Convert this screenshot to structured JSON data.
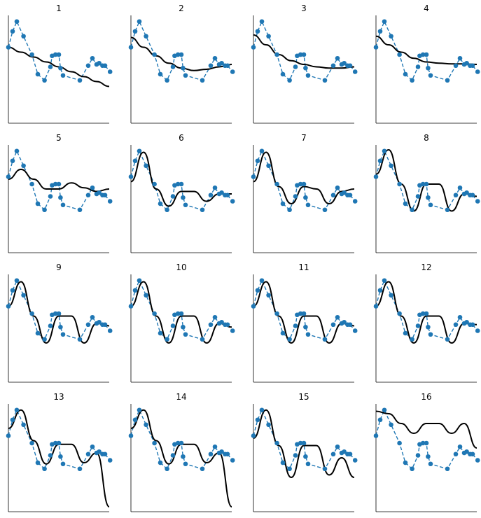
{
  "colors": {
    "truth": "#1f77b4",
    "points": "#1f77b4",
    "fit": "#000000",
    "axis": "#000000"
  },
  "chart_data": {
    "type": "line",
    "layout": {
      "rows": 4,
      "cols": 4
    },
    "true_function": {
      "label": "",
      "style": "dashed"
    },
    "samples": {
      "x": [
        0.0,
        0.05,
        0.1,
        0.18,
        0.28,
        0.35,
        0.43,
        0.5,
        0.52,
        0.56,
        0.6,
        0.62,
        0.65,
        0.85,
        0.95,
        1.0,
        1.05,
        1.08,
        1.12,
        1.15,
        1.21
      ],
      "y": [
        -0.1,
        0.55,
        0.95,
        0.35,
        -0.4,
        -1.2,
        -1.45,
        -0.9,
        -0.45,
        -0.4,
        -0.4,
        -0.95,
        -1.25,
        -1.45,
        -0.85,
        -0.55,
        -0.8,
        -0.75,
        -0.85,
        -0.85,
        -1.1
      ]
    },
    "panels": [
      {
        "title": "1",
        "fit": [
          -0.1,
          -0.3,
          -0.5,
          -0.7,
          -0.9,
          -1.1,
          -1.3,
          -1.5,
          -1.7
        ]
      },
      {
        "title": "2",
        "fit": [
          0.3,
          -0.1,
          -0.45,
          -0.75,
          -0.95,
          -1.05,
          -1.0,
          -0.9,
          -0.8
        ]
      },
      {
        "title": "3",
        "fit": [
          0.4,
          0.0,
          -0.4,
          -0.65,
          -0.8,
          -0.9,
          -0.95,
          -0.95,
          -0.9
        ]
      },
      {
        "title": "4",
        "fit": [
          0.35,
          0.0,
          -0.3,
          -0.55,
          -0.7,
          -0.75,
          -0.78,
          -0.78,
          -0.8
        ]
      },
      {
        "title": "5",
        "fit": [
          -0.2,
          0.2,
          -0.2,
          -0.6,
          -0.6,
          -0.35,
          -0.55,
          -0.7,
          -0.6
        ]
      },
      {
        "title": "6",
        "fit": [
          -0.3,
          0.9,
          -0.6,
          -1.3,
          -0.7,
          -0.7,
          -1.1,
          -0.8,
          -0.8
        ]
      },
      {
        "title": "7",
        "fit": [
          -0.3,
          0.9,
          -0.5,
          -1.2,
          -0.5,
          -0.6,
          -1.2,
          -0.7,
          -0.6
        ]
      },
      {
        "title": "8",
        "fit": [
          0.0,
          1.0,
          -0.4,
          -1.5,
          -0.4,
          -0.4,
          -1.5,
          -0.8,
          -0.9
        ]
      },
      {
        "title": "9",
        "fit": [
          -0.1,
          0.9,
          -0.5,
          -1.6,
          -0.5,
          -0.5,
          -1.6,
          -0.8,
          -0.9
        ]
      },
      {
        "title": "10",
        "fit": [
          -0.1,
          0.9,
          -0.5,
          -1.6,
          -0.5,
          -0.5,
          -1.6,
          -0.8,
          -0.95
        ]
      },
      {
        "title": "11",
        "fit": [
          -0.1,
          0.9,
          -0.5,
          -1.6,
          -0.5,
          -0.5,
          -1.6,
          -0.8,
          -0.9
        ]
      },
      {
        "title": "12",
        "fit": [
          -0.1,
          0.9,
          -0.5,
          -1.6,
          -0.5,
          -0.5,
          -1.6,
          -0.8,
          -0.85
        ]
      },
      {
        "title": "13",
        "fit": [
          0.2,
          0.95,
          -0.3,
          -1.25,
          -0.45,
          -0.45,
          -1.2,
          -0.8,
          -3.0
        ]
      },
      {
        "title": "14",
        "fit": [
          0.2,
          0.95,
          -0.3,
          -1.25,
          -0.45,
          -0.45,
          -1.2,
          -0.8,
          -3.0
        ]
      },
      {
        "title": "15",
        "fit": [
          -0.2,
          0.95,
          -0.5,
          -1.8,
          -0.5,
          -0.5,
          -1.7,
          -1.0,
          -1.8
        ]
      },
      {
        "title": "16",
        "fit": [
          0.9,
          0.8,
          0.4,
          0.0,
          0.4,
          0.4,
          0.0,
          0.4,
          -0.6
        ]
      }
    ],
    "xlim": [
      0,
      1.2
    ],
    "ylim": [
      -3.2,
      1.2
    ]
  }
}
